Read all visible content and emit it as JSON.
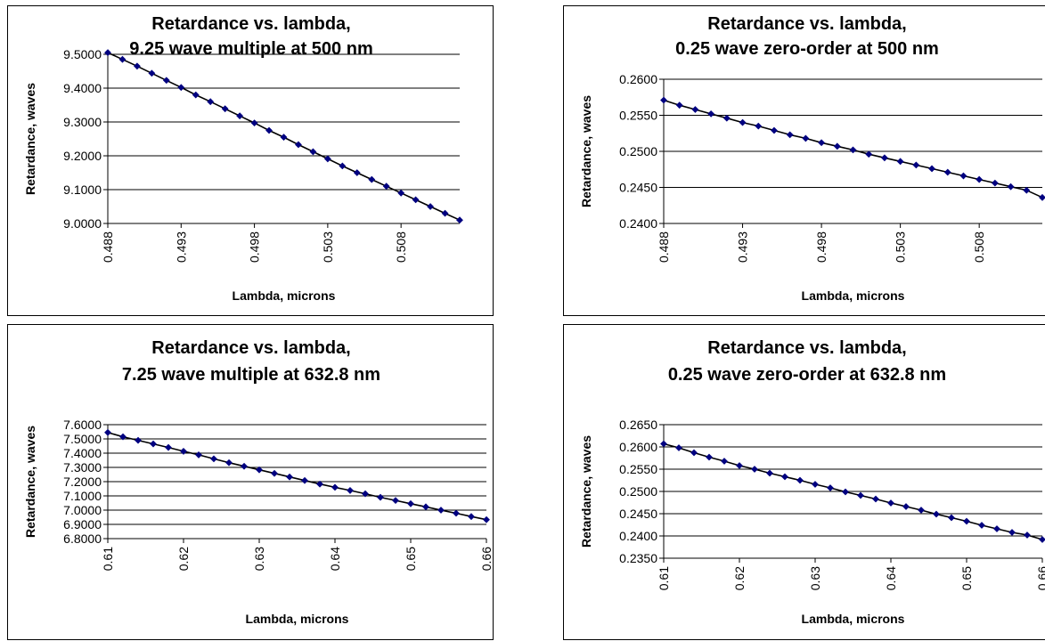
{
  "chart_data": [
    {
      "type": "line",
      "title": [
        "Retardance vs. lambda,",
        "9.25 wave multiple at 500 nm"
      ],
      "xlabel": "Lambda, microns",
      "ylabel": "Retardance, waves",
      "xlim": [
        0.488,
        0.512
      ],
      "ylim": [
        9.0,
        9.5
      ],
      "yticks": [
        "9.5000",
        "9.4000",
        "9.3000",
        "9.2000",
        "9.1000",
        "9.0000"
      ],
      "ytick_values": [
        9.5,
        9.4,
        9.3,
        9.2,
        9.1,
        9.0
      ],
      "xticks": [
        "0.488",
        "0.493",
        "0.498",
        "0.503",
        "0.508"
      ],
      "xtick_values": [
        0.488,
        0.493,
        0.498,
        0.503,
        0.508
      ],
      "grid": "horizontal",
      "series": [
        {
          "color": "#000080",
          "x": [
            0.488,
            0.489,
            0.49,
            0.491,
            0.492,
            0.493,
            0.494,
            0.495,
            0.496,
            0.497,
            0.498,
            0.499,
            0.5,
            0.501,
            0.502,
            0.503,
            0.504,
            0.505,
            0.506,
            0.507,
            0.508,
            0.509,
            0.51,
            0.511,
            0.512
          ],
          "y": [
            9.505,
            9.485,
            9.465,
            9.444,
            9.423,
            9.402,
            9.38,
            9.36,
            9.339,
            9.318,
            9.297,
            9.275,
            9.255,
            9.233,
            9.212,
            9.191,
            9.17,
            9.15,
            9.13,
            9.11,
            9.09,
            9.07,
            9.05,
            9.03,
            9.01
          ]
        }
      ]
    },
    {
      "type": "line",
      "title": [
        "Retardance vs. lambda,",
        "0.25 wave zero-order at 500 nm"
      ],
      "xlabel": "Lambda, microns",
      "ylabel": "Retardance, waves",
      "xlim": [
        0.488,
        0.512
      ],
      "ylim": [
        0.24,
        0.26
      ],
      "yticks": [
        "0.2600",
        "0.2550",
        "0.2500",
        "0.2450",
        "0.2400"
      ],
      "ytick_values": [
        0.26,
        0.255,
        0.25,
        0.245,
        0.24
      ],
      "xticks": [
        "0.488",
        "0.493",
        "0.498",
        "0.503",
        "0.508"
      ],
      "xtick_values": [
        0.488,
        0.493,
        0.498,
        0.503,
        0.508
      ],
      "grid": "horizontal",
      "series": [
        {
          "color": "#000080",
          "x": [
            0.488,
            0.489,
            0.49,
            0.491,
            0.492,
            0.493,
            0.494,
            0.495,
            0.496,
            0.497,
            0.498,
            0.499,
            0.5,
            0.501,
            0.502,
            0.503,
            0.504,
            0.505,
            0.506,
            0.507,
            0.508,
            0.509,
            0.51,
            0.511,
            0.512
          ],
          "y": [
            0.2571,
            0.2564,
            0.2558,
            0.2552,
            0.2546,
            0.254,
            0.2535,
            0.2529,
            0.2523,
            0.2518,
            0.2512,
            0.2507,
            0.2502,
            0.2496,
            0.2491,
            0.2486,
            0.2481,
            0.2476,
            0.2471,
            0.2466,
            0.2461,
            0.2456,
            0.2451,
            0.2446,
            0.2436
          ]
        }
      ]
    },
    {
      "type": "line",
      "title": [
        "Retardance vs. lambda,",
        "7.25 wave multiple at 632.8 nm"
      ],
      "xlabel": "Lambda, microns",
      "ylabel": "Retardance, waves",
      "xlim": [
        0.61,
        0.66
      ],
      "ylim": [
        6.8,
        7.6
      ],
      "yticks": [
        "7.6000",
        "7.5000",
        "7.4000",
        "7.3000",
        "7.2000",
        "7.1000",
        "7.0000",
        "6.9000",
        "6.8000"
      ],
      "ytick_values": [
        7.6,
        7.5,
        7.4,
        7.3,
        7.2,
        7.1,
        7.0,
        6.9,
        6.8
      ],
      "xticks": [
        "0.61",
        "0.62",
        "0.63",
        "0.64",
        "0.65",
        "0.66"
      ],
      "xtick_values": [
        0.61,
        0.62,
        0.63,
        0.64,
        0.65,
        0.66
      ],
      "grid": "horizontal",
      "series": [
        {
          "color": "#000080",
          "x": [
            0.61,
            0.612,
            0.614,
            0.616,
            0.618,
            0.62,
            0.622,
            0.624,
            0.626,
            0.628,
            0.63,
            0.632,
            0.634,
            0.636,
            0.638,
            0.64,
            0.642,
            0.644,
            0.646,
            0.648,
            0.65,
            0.652,
            0.654,
            0.656,
            0.658,
            0.66
          ],
          "y": [
            7.545,
            7.515,
            7.49,
            7.465,
            7.44,
            7.413,
            7.388,
            7.36,
            7.333,
            7.308,
            7.283,
            7.258,
            7.233,
            7.208,
            7.183,
            7.16,
            7.138,
            7.115,
            7.09,
            7.068,
            7.045,
            7.023,
            7.0,
            6.978,
            6.955,
            6.933
          ]
        }
      ]
    },
    {
      "type": "line",
      "title": [
        "Retardance vs. lambda,",
        "0.25 wave zero-order at 632.8 nm"
      ],
      "xlabel": "Lambda, microns",
      "ylabel": "Retardance, waves",
      "xlim": [
        0.61,
        0.66
      ],
      "ylim": [
        0.235,
        0.265
      ],
      "yticks": [
        "0.2650",
        "0.2600",
        "0.2550",
        "0.2500",
        "0.2450",
        "0.2400",
        "0.2350"
      ],
      "ytick_values": [
        0.265,
        0.26,
        0.255,
        0.25,
        0.245,
        0.24,
        0.235
      ],
      "xticks": [
        "0.61",
        "0.62",
        "0.63",
        "0.64",
        "0.65",
        "0.66"
      ],
      "xtick_values": [
        0.61,
        0.62,
        0.63,
        0.64,
        0.65,
        0.66
      ],
      "grid": "horizontal",
      "series": [
        {
          "color": "#000080",
          "x": [
            0.61,
            0.612,
            0.614,
            0.616,
            0.618,
            0.62,
            0.622,
            0.624,
            0.626,
            0.628,
            0.63,
            0.632,
            0.634,
            0.636,
            0.638,
            0.64,
            0.642,
            0.644,
            0.646,
            0.648,
            0.65,
            0.652,
            0.654,
            0.656,
            0.658,
            0.66
          ],
          "y": [
            0.2607,
            0.2598,
            0.2587,
            0.2577,
            0.2568,
            0.2558,
            0.255,
            0.2541,
            0.2533,
            0.2525,
            0.2516,
            0.2508,
            0.2499,
            0.2491,
            0.2483,
            0.2474,
            0.2466,
            0.2458,
            0.2449,
            0.2441,
            0.2433,
            0.2424,
            0.2416,
            0.2408,
            0.2402,
            0.2392
          ]
        }
      ]
    }
  ]
}
